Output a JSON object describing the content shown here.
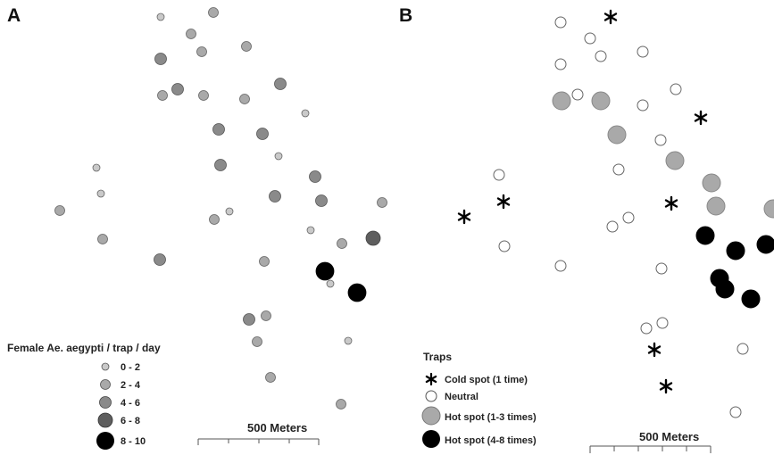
{
  "panels": {
    "a": {
      "label": "A",
      "legend": {
        "title": "Female Ae. aegypti / trap / day",
        "classes": [
          {
            "label": "0 - 2",
            "fill": "#c9c9c9"
          },
          {
            "label": "2 - 4",
            "fill": "#a9a9a9"
          },
          {
            "label": "4 - 6",
            "fill": "#8a8a8a"
          },
          {
            "label": "6 - 8",
            "fill": "#5e5e5e"
          },
          {
            "label": "8 - 10",
            "fill": "#000000"
          }
        ]
      },
      "scale_label": "500 Meters"
    },
    "b": {
      "label": "B",
      "legend": {
        "title": "Traps",
        "items": [
          {
            "label": "Cold spot (1 time)",
            "symbol": "asterisk-icon"
          },
          {
            "label": "Neutral",
            "symbol": "open-circle-icon"
          },
          {
            "label": "Hot spot (1-3 times)",
            "symbol": "grey-circle-icon",
            "fill": "#a9a9a9"
          },
          {
            "label": "Hot spot (4-8 times)",
            "symbol": "black-circle-icon",
            "fill": "#000000"
          }
        ]
      },
      "scale_label": "500 Meters"
    }
  },
  "colors": {
    "class_0_2": "#c9c9c9",
    "class_2_4": "#a9a9a9",
    "class_4_6": "#8a8a8a",
    "class_6_8": "#5e5e5e",
    "class_8_10": "#000000",
    "neutral": "#ffffff",
    "hotspot_low": "#a9a9a9",
    "hotspot_high": "#000000"
  }
}
